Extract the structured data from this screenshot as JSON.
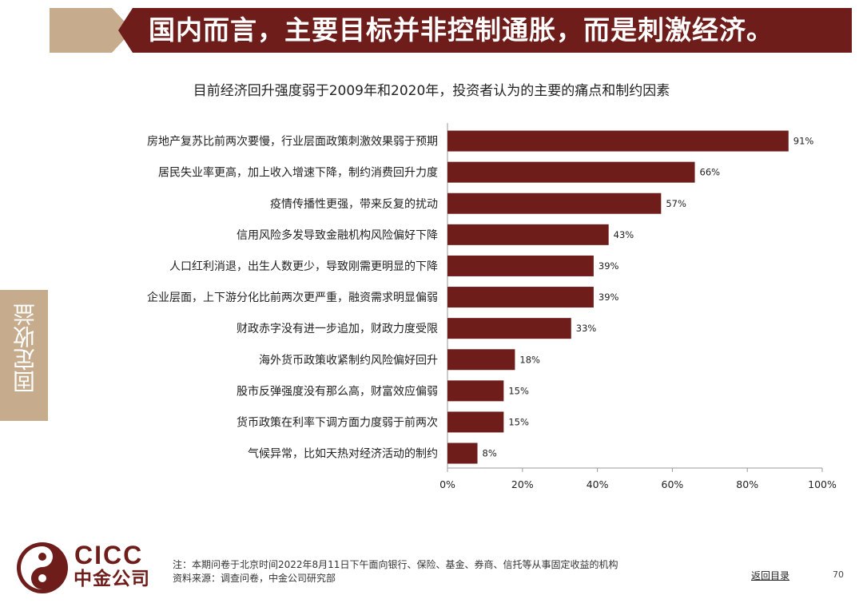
{
  "header": {
    "title": "国内而言，主要目标并非控制通胀，而是刺激经济。"
  },
  "side_tab": {
    "label": "固定收益"
  },
  "chart_data": {
    "type": "bar",
    "orientation": "horizontal",
    "title": "目前经济回升强度弱于2009年和2020年，投资者认为的主要的痛点和制约因素",
    "xlabel": "",
    "ylabel": "",
    "xlim": [
      0,
      100
    ],
    "x_ticks": [
      0,
      20,
      40,
      60,
      80,
      100
    ],
    "x_tick_suffix": "%",
    "bar_color": "#6e1d1a",
    "grid": false,
    "categories": [
      "房地产复苏比前两次要慢，行业层面政策刺激效果弱于预期",
      "居民失业率更高，加上收入增速下降，制约消费回升力度",
      "疫情传播性更强，带来反复的扰动",
      "信用风险多发导致金融机构风险偏好下降",
      "人口红利消退，出生人数更少，导致刚需更明显的下降",
      "企业层面，上下游分化比前两次更严重，融资需求明显偏弱",
      "财政赤字没有进一步追加，财政力度受限",
      "海外货币政策收紧制约风险偏好回升",
      "股市反弹强度没有那么高，财富效应偏弱",
      "货币政策在利率下调方面力度弱于前两次",
      "气候异常，比如天热对经济活动的制约"
    ],
    "values": [
      91,
      66,
      57,
      43,
      39,
      39,
      33,
      18,
      15,
      15,
      8
    ],
    "value_labels": [
      "91%",
      "66%",
      "57%",
      "43%",
      "39%",
      "39%",
      "33%",
      "18%",
      "15%",
      "15%",
      "8%"
    ]
  },
  "footer": {
    "logo_en": "CICC",
    "logo_cn": "中金公司",
    "note": "注：本期问卷于北京时间2022年8月11日下午面向银行、保险、基金、券商、信托等从事固定收益的机构",
    "source": "资料来源：调查问卷，中金公司研究部",
    "back_link": "返回目录",
    "page_number": "70"
  }
}
